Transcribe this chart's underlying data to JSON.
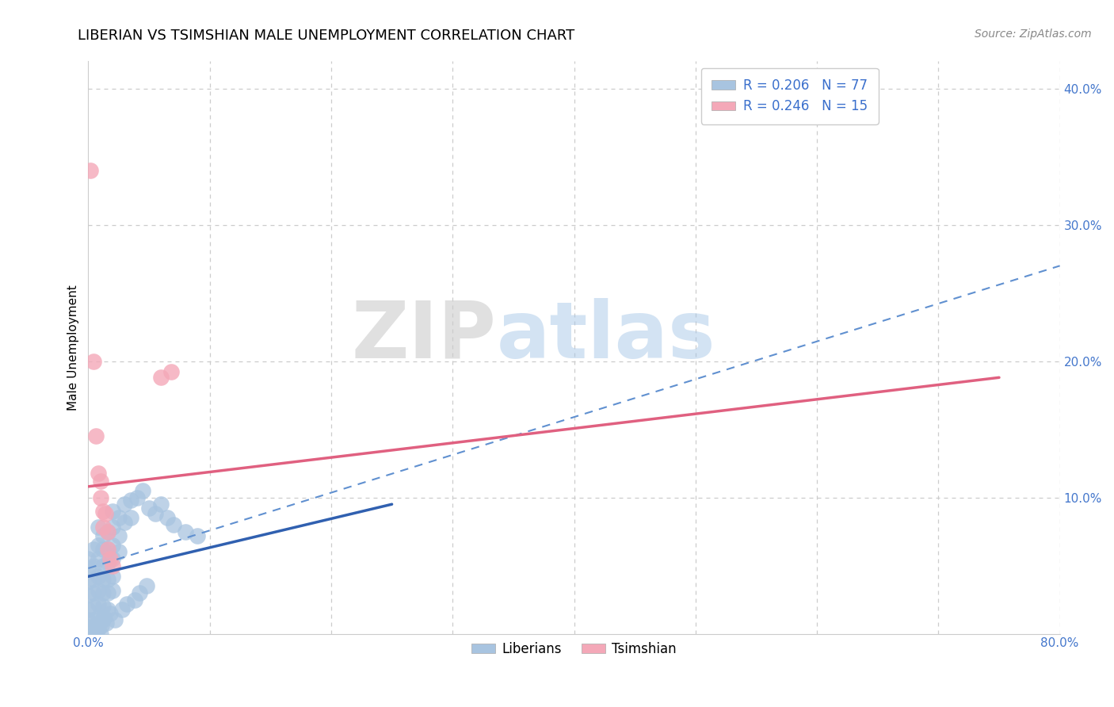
{
  "title": "LIBERIAN VS TSIMSHIAN MALE UNEMPLOYMENT CORRELATION CHART",
  "source": "Source: ZipAtlas.com",
  "xlabel": "",
  "ylabel": "Male Unemployment",
  "xlim": [
    0.0,
    0.8
  ],
  "ylim": [
    0.0,
    0.42
  ],
  "xticks": [
    0.0,
    0.1,
    0.2,
    0.3,
    0.4,
    0.5,
    0.6,
    0.7,
    0.8
  ],
  "xticklabels": [
    "0.0%",
    "",
    "",
    "",
    "",
    "",
    "",
    "",
    "80.0%"
  ],
  "yticks": [
    0.0,
    0.1,
    0.2,
    0.3,
    0.4
  ],
  "yticklabels": [
    "",
    "10.0%",
    "20.0%",
    "30.0%",
    "40.0%"
  ],
  "liberian_color": "#a8c4e0",
  "tsimshian_color": "#f4a8b8",
  "liberian_R": 0.206,
  "liberian_N": 77,
  "tsimshian_R": 0.246,
  "tsimshian_N": 15,
  "legend_R_color": "#3a6fcc",
  "liberian_scatter": [
    [
      0.0,
      0.055
    ],
    [
      0.0,
      0.048
    ],
    [
      0.0,
      0.038
    ],
    [
      0.0,
      0.028
    ],
    [
      0.0,
      0.018
    ],
    [
      0.0,
      0.01
    ],
    [
      0.0,
      0.005
    ],
    [
      0.0,
      0.002
    ],
    [
      0.0,
      0.0
    ],
    [
      0.004,
      0.062
    ],
    [
      0.004,
      0.05
    ],
    [
      0.004,
      0.04
    ],
    [
      0.004,
      0.03
    ],
    [
      0.004,
      0.02
    ],
    [
      0.004,
      0.01
    ],
    [
      0.004,
      0.004
    ],
    [
      0.004,
      0.0
    ],
    [
      0.008,
      0.078
    ],
    [
      0.008,
      0.065
    ],
    [
      0.008,
      0.055
    ],
    [
      0.008,
      0.042
    ],
    [
      0.008,
      0.032
    ],
    [
      0.008,
      0.022
    ],
    [
      0.008,
      0.012
    ],
    [
      0.008,
      0.004
    ],
    [
      0.012,
      0.072
    ],
    [
      0.012,
      0.062
    ],
    [
      0.012,
      0.05
    ],
    [
      0.012,
      0.04
    ],
    [
      0.012,
      0.03
    ],
    [
      0.012,
      0.02
    ],
    [
      0.012,
      0.01
    ],
    [
      0.016,
      0.075
    ],
    [
      0.016,
      0.062
    ],
    [
      0.016,
      0.052
    ],
    [
      0.016,
      0.04
    ],
    [
      0.016,
      0.03
    ],
    [
      0.016,
      0.018
    ],
    [
      0.02,
      0.09
    ],
    [
      0.02,
      0.078
    ],
    [
      0.02,
      0.065
    ],
    [
      0.02,
      0.055
    ],
    [
      0.02,
      0.042
    ],
    [
      0.02,
      0.032
    ],
    [
      0.025,
      0.085
    ],
    [
      0.025,
      0.072
    ],
    [
      0.025,
      0.06
    ],
    [
      0.03,
      0.095
    ],
    [
      0.03,
      0.082
    ],
    [
      0.035,
      0.098
    ],
    [
      0.035,
      0.085
    ],
    [
      0.04,
      0.1
    ],
    [
      0.045,
      0.105
    ],
    [
      0.05,
      0.092
    ],
    [
      0.055,
      0.088
    ],
    [
      0.06,
      0.095
    ],
    [
      0.065,
      0.085
    ],
    [
      0.07,
      0.08
    ],
    [
      0.08,
      0.075
    ],
    [
      0.09,
      0.072
    ],
    [
      0.01,
      0.0
    ],
    [
      0.006,
      0.0
    ],
    [
      0.002,
      0.0
    ],
    [
      0.003,
      0.002
    ],
    [
      0.005,
      0.005
    ],
    [
      0.007,
      0.003
    ],
    [
      0.009,
      0.008
    ],
    [
      0.011,
      0.006
    ],
    [
      0.013,
      0.012
    ],
    [
      0.015,
      0.008
    ],
    [
      0.018,
      0.015
    ],
    [
      0.022,
      0.01
    ],
    [
      0.028,
      0.018
    ],
    [
      0.032,
      0.022
    ],
    [
      0.038,
      0.025
    ],
    [
      0.042,
      0.03
    ],
    [
      0.048,
      0.035
    ]
  ],
  "tsimshian_scatter": [
    [
      0.002,
      0.34
    ],
    [
      0.004,
      0.2
    ],
    [
      0.006,
      0.145
    ],
    [
      0.008,
      0.118
    ],
    [
      0.01,
      0.112
    ],
    [
      0.01,
      0.1
    ],
    [
      0.012,
      0.09
    ],
    [
      0.012,
      0.078
    ],
    [
      0.014,
      0.088
    ],
    [
      0.016,
      0.075
    ],
    [
      0.016,
      0.062
    ],
    [
      0.018,
      0.055
    ],
    [
      0.02,
      0.05
    ],
    [
      0.06,
      0.188
    ],
    [
      0.068,
      0.192
    ]
  ],
  "background_color": "#ffffff",
  "grid_color": "#cccccc",
  "title_fontsize": 13,
  "axis_label_fontsize": 11,
  "tick_fontsize": 11,
  "legend_fontsize": 12,
  "blue_line_x0": 0.0,
  "blue_line_y0": 0.042,
  "blue_line_x1": 0.25,
  "blue_line_y1": 0.095,
  "pink_line_x0": 0.0,
  "pink_line_y0": 0.108,
  "pink_line_x1": 0.75,
  "pink_line_y1": 0.188,
  "dash_line_x0": 0.0,
  "dash_line_y0": 0.048,
  "dash_line_x1": 0.8,
  "dash_line_y1": 0.27
}
